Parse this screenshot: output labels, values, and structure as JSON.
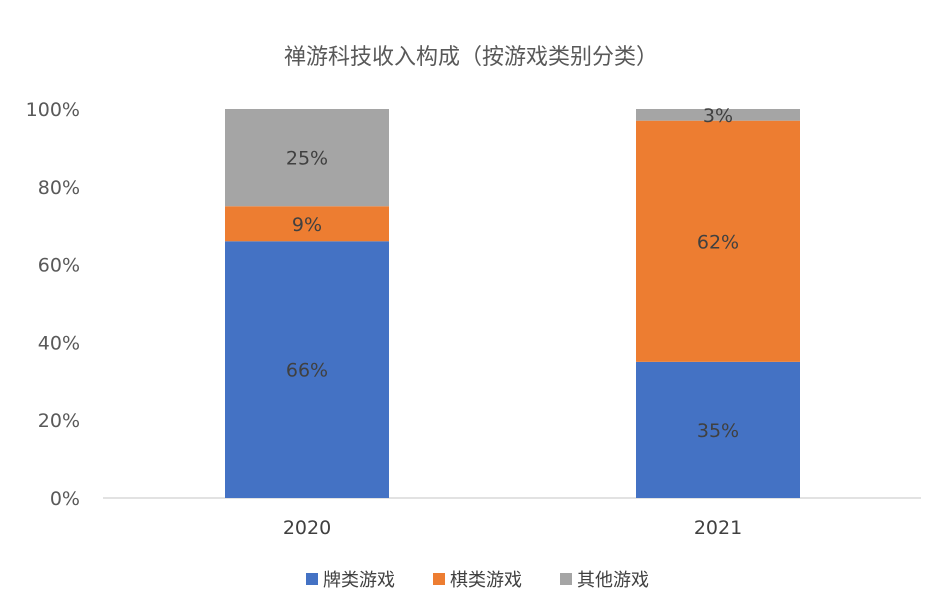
{
  "chart_data": {
    "type": "bar",
    "stacked": true,
    "title": "禅游科技收入构成（按游戏类别分类）",
    "categories": [
      "2020",
      "2021"
    ],
    "series": [
      {
        "name": "牌类游戏",
        "color": "#4472C4",
        "values": [
          66,
          35
        ],
        "labels": [
          "66%",
          "35%"
        ]
      },
      {
        "name": "棋类游戏",
        "color": "#ED7D31",
        "values": [
          9,
          62
        ],
        "labels": [
          "9%",
          "62%"
        ]
      },
      {
        "name": "其他游戏",
        "color": "#A5A5A5",
        "values": [
          25,
          3
        ],
        "labels": [
          "25%",
          "3%"
        ]
      }
    ],
    "y_ticks": [
      "0%",
      "20%",
      "40%",
      "60%",
      "80%",
      "100%"
    ],
    "ylim": [
      0,
      100
    ],
    "legend_position": "bottom",
    "grid": false
  }
}
